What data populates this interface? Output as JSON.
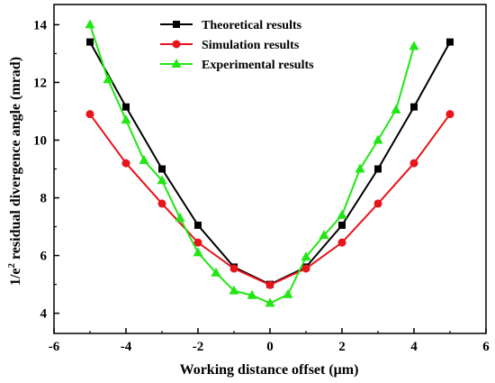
{
  "chart_data": {
    "type": "line",
    "xlabel": "Working distance offset (μm)",
    "ylabel_parts": {
      "main": "1/e",
      "sup": "2",
      "rest": " residual divergence angle (mrad)"
    },
    "xlim": [
      -6,
      6
    ],
    "ylim": [
      3.3,
      14.7
    ],
    "xticks": [
      -6,
      -4,
      -2,
      0,
      2,
      4,
      6
    ],
    "yticks": [
      4,
      6,
      8,
      10,
      12,
      14
    ],
    "grid": false,
    "legend_position": "top-center",
    "series": [
      {
        "name": "Theoretical results",
        "color": "#000000",
        "marker": "square",
        "x": [
          -5,
          -4,
          -3,
          -2,
          -1,
          0,
          1,
          2,
          3,
          4,
          5
        ],
        "y": [
          13.4,
          11.15,
          9.0,
          7.05,
          5.6,
          5.0,
          5.6,
          7.05,
          9.0,
          11.15,
          13.4
        ]
      },
      {
        "name": "Simulation results",
        "color": "#e8141b",
        "marker": "circle",
        "x": [
          -5,
          -4,
          -3,
          -2,
          -1,
          0,
          1,
          2,
          3,
          4,
          5
        ],
        "y": [
          10.9,
          9.2,
          7.8,
          6.45,
          5.55,
          4.98,
          5.55,
          6.45,
          7.8,
          9.2,
          10.9
        ]
      },
      {
        "name": "Experimental results",
        "color": "#22e614",
        "marker": "triangle",
        "x": [
          -5,
          -4.5,
          -4,
          -3.5,
          -3,
          -2.5,
          -2,
          -1.5,
          -1,
          -0.5,
          0,
          0.5,
          1,
          1.5,
          2,
          2.5,
          3,
          3.5,
          4
        ],
        "y": [
          14.0,
          12.1,
          10.7,
          9.3,
          8.6,
          7.3,
          6.1,
          5.4,
          4.78,
          4.62,
          4.35,
          4.65,
          5.95,
          6.7,
          7.4,
          9.0,
          10.0,
          11.05,
          13.25
        ]
      }
    ]
  }
}
